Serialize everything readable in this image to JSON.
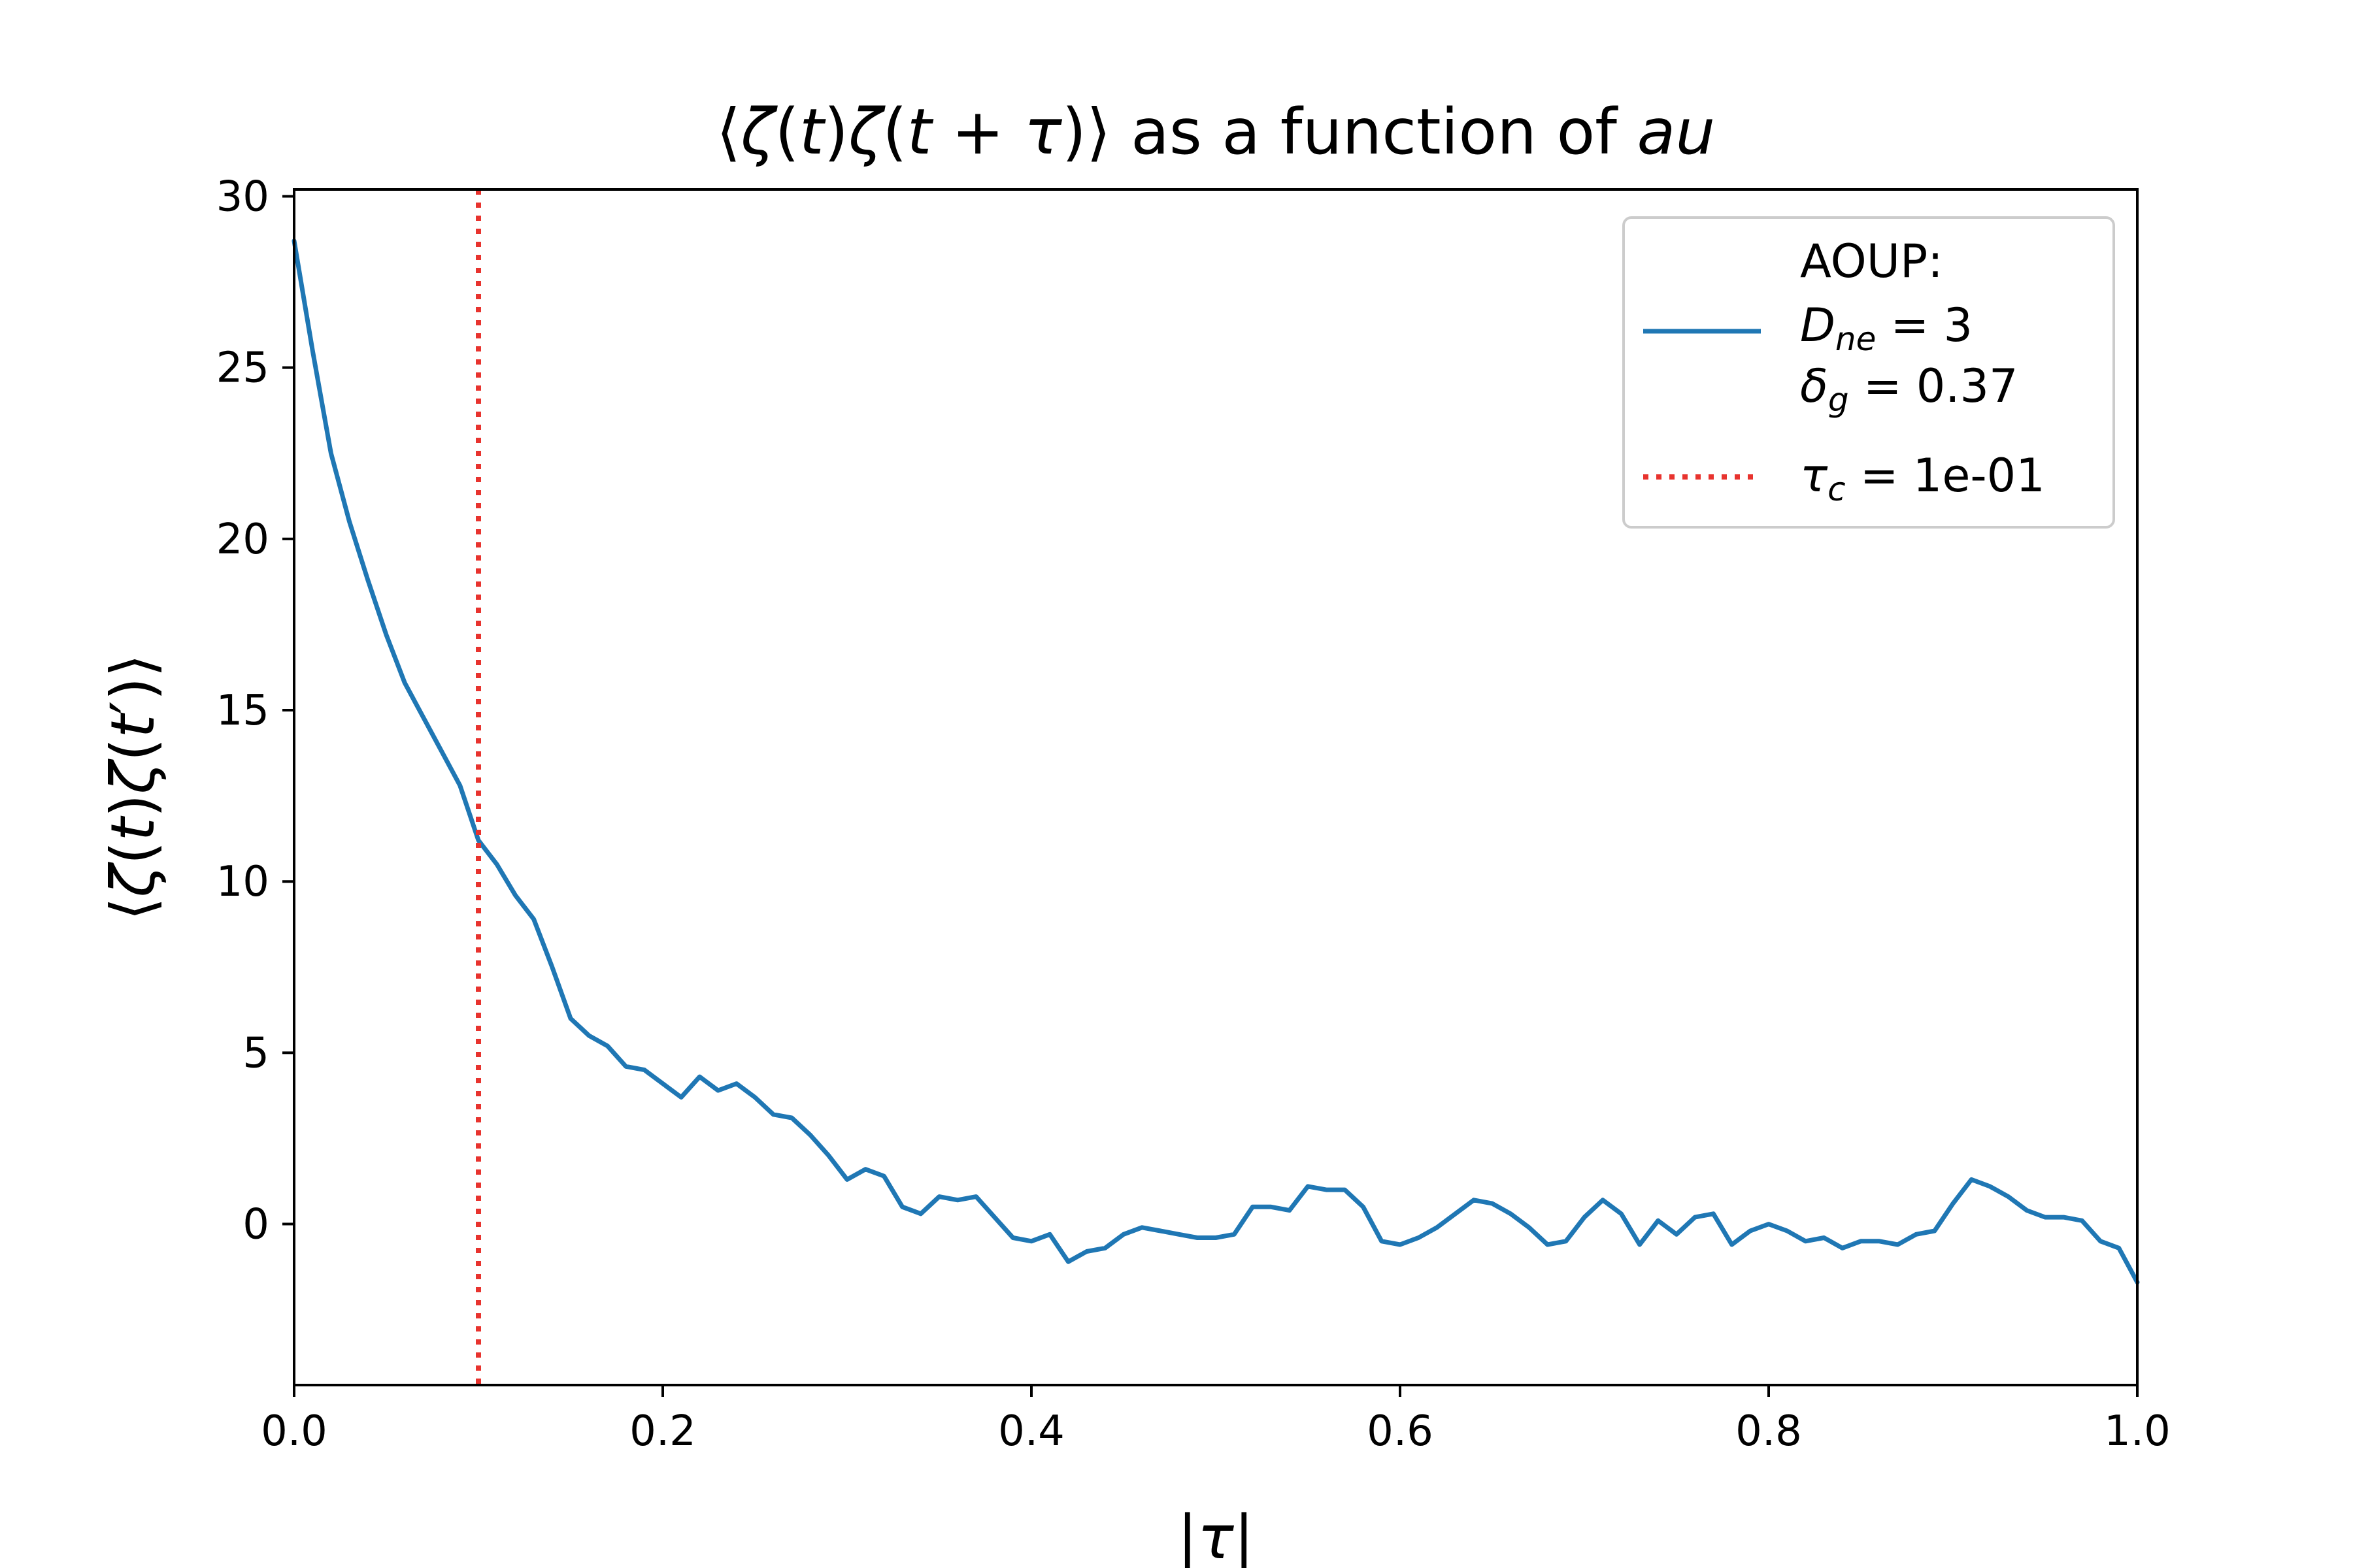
{
  "chart_data": {
    "type": "line",
    "title": "⟨ζ(t)ζ(t + τ)⟩ as a function of au",
    "xlabel": "|τ|",
    "ylabel": "⟨ζ(t)ζ(t′)⟩",
    "xlim": [
      0.0,
      1.0
    ],
    "ylim": [
      -4.7,
      30.2
    ],
    "xticks": [
      0.0,
      0.2,
      0.4,
      0.6,
      0.8,
      1.0
    ],
    "xtick_labels": [
      "0.0",
      "0.2",
      "0.4",
      "0.6",
      "0.8",
      "1.0"
    ],
    "yticks": [
      0,
      5,
      10,
      15,
      20,
      25,
      30
    ],
    "ytick_labels": [
      "0",
      "5",
      "10",
      "15",
      "20",
      "25",
      "30"
    ],
    "grid": false,
    "legend_position": "top-right",
    "legend": {
      "aoup_line1": "AOUP:",
      "aoup_line2": "D_ne = 3",
      "aoup_line3": "δ_g = 0.37",
      "tau_c": "τ_c = 1e-01"
    },
    "series": [
      {
        "name": "AOUP: D_ne = 3, δ_g = 0.37",
        "color": "#1f77b4",
        "style": "solid",
        "x": [
          0.0,
          0.01,
          0.02,
          0.03,
          0.04,
          0.05,
          0.06,
          0.07,
          0.08,
          0.09,
          0.1,
          0.11,
          0.12,
          0.13,
          0.14,
          0.15,
          0.16,
          0.17,
          0.18,
          0.19,
          0.2,
          0.21,
          0.22,
          0.23,
          0.24,
          0.25,
          0.26,
          0.27,
          0.28,
          0.29,
          0.3,
          0.31,
          0.32,
          0.33,
          0.34,
          0.35,
          0.36,
          0.37,
          0.38,
          0.39,
          0.4,
          0.41,
          0.42,
          0.43,
          0.44,
          0.45,
          0.46,
          0.47,
          0.48,
          0.49,
          0.5,
          0.51,
          0.52,
          0.53,
          0.54,
          0.55,
          0.56,
          0.57,
          0.58,
          0.59,
          0.6,
          0.61,
          0.62,
          0.63,
          0.64,
          0.65,
          0.66,
          0.67,
          0.68,
          0.69,
          0.7,
          0.71,
          0.72,
          0.73,
          0.74,
          0.75,
          0.76,
          0.77,
          0.78,
          0.79,
          0.8,
          0.81,
          0.82,
          0.83,
          0.84,
          0.85,
          0.86,
          0.87,
          0.88,
          0.89,
          0.9,
          0.91,
          0.92,
          0.93,
          0.94,
          0.95,
          0.96,
          0.97,
          0.98,
          0.99,
          1.0
        ],
        "y": [
          28.7,
          25.5,
          22.5,
          20.5,
          18.8,
          17.2,
          15.8,
          14.8,
          13.8,
          12.8,
          11.2,
          10.5,
          9.6,
          8.9,
          7.5,
          6.0,
          5.5,
          5.2,
          4.6,
          4.5,
          4.1,
          3.7,
          4.3,
          3.9,
          4.1,
          3.7,
          3.2,
          3.1,
          2.6,
          2.0,
          1.3,
          1.6,
          1.4,
          0.5,
          0.3,
          0.8,
          0.7,
          0.8,
          0.2,
          -0.4,
          -0.5,
          -0.3,
          -1.1,
          -0.8,
          -0.7,
          -0.3,
          -0.1,
          -0.2,
          -0.3,
          -0.4,
          -0.4,
          -0.3,
          0.5,
          0.5,
          0.4,
          1.1,
          1.0,
          1.0,
          0.5,
          -0.5,
          -0.6,
          -0.4,
          -0.1,
          0.3,
          0.7,
          0.6,
          0.3,
          -0.1,
          -0.6,
          -0.5,
          0.2,
          0.7,
          0.3,
          -0.6,
          0.1,
          -0.3,
          0.2,
          0.3,
          -0.6,
          -0.2,
          0.0,
          -0.2,
          -0.5,
          -0.4,
          -0.7,
          -0.5,
          -0.5,
          -0.6,
          -0.3,
          -0.2,
          0.6,
          1.3,
          1.1,
          0.8,
          0.4,
          0.2,
          0.2,
          0.1,
          -0.5,
          -0.7,
          -1.7
        ]
      }
    ],
    "vlines": [
      {
        "name": "τ_c = 1e-01",
        "x": 0.1,
        "color": "#e8332e",
        "style": "dotted"
      }
    ]
  }
}
